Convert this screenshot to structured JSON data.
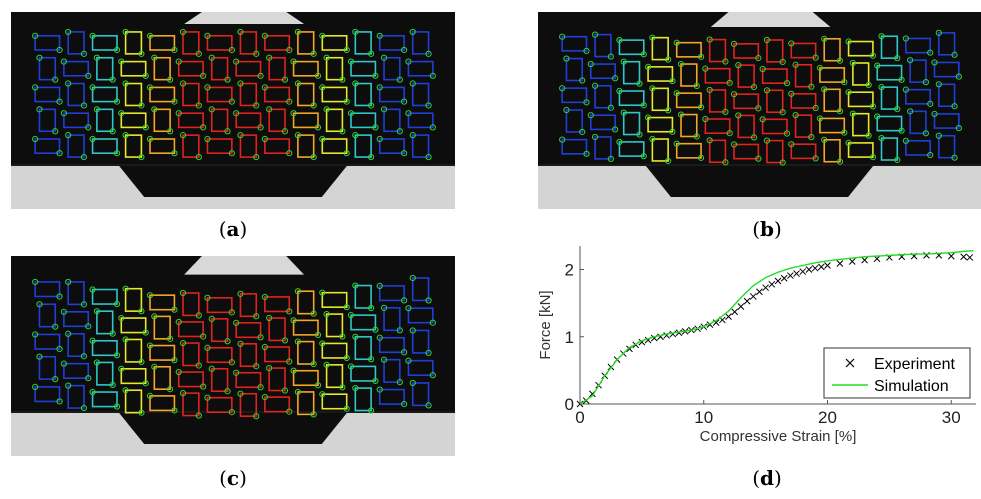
{
  "panels": [
    {
      "id": "a",
      "caption_letter": "a",
      "deformation": 0.0
    },
    {
      "id": "b",
      "caption_letter": "b",
      "deformation": 0.45
    },
    {
      "id": "c",
      "caption_letter": "c",
      "deformation": 1.0
    }
  ],
  "caption_d_letter": "d",
  "marker_colors": {
    "low": "#1f3fd6",
    "mid_low": "#2fc7c7",
    "mid": "#e8e82a",
    "mid_high": "#f5a623",
    "high": "#e0231d",
    "node": "#32d432"
  },
  "chart_data": {
    "type": "line",
    "title": "",
    "xlabel": "Compressive Strain [%]",
    "ylabel": "Force [kN]",
    "xlim": [
      0,
      32
    ],
    "ylim": [
      0,
      2.35
    ],
    "xticks": [
      "0",
      "10",
      "20",
      "30"
    ],
    "yticks": [
      "0",
      "1",
      "2"
    ],
    "legend_position": "bottom-right",
    "series": [
      {
        "name": "Experiment",
        "style": "marker-x",
        "color": "#000000",
        "x": [
          0,
          0.5,
          1,
          1.5,
          2,
          2.5,
          3,
          3.5,
          4,
          4.5,
          5,
          5.5,
          6,
          6.5,
          7,
          7.5,
          8,
          8.5,
          9,
          9.5,
          10,
          10.5,
          11,
          11.5,
          12,
          12.5,
          13,
          13.5,
          14,
          14.5,
          15,
          15.5,
          16,
          16.5,
          17,
          17.5,
          18,
          18.5,
          19,
          19.5,
          20,
          21,
          22,
          23,
          24,
          25,
          26,
          27,
          28,
          29,
          30,
          31,
          31.5
        ],
        "y": [
          0,
          0.05,
          0.15,
          0.28,
          0.42,
          0.55,
          0.66,
          0.75,
          0.82,
          0.88,
          0.92,
          0.95,
          0.98,
          1.0,
          1.02,
          1.04,
          1.06,
          1.08,
          1.1,
          1.12,
          1.15,
          1.18,
          1.21,
          1.25,
          1.3,
          1.37,
          1.45,
          1.53,
          1.6,
          1.67,
          1.73,
          1.78,
          1.83,
          1.87,
          1.91,
          1.94,
          1.97,
          2.0,
          2.02,
          2.04,
          2.06,
          2.09,
          2.12,
          2.14,
          2.16,
          2.18,
          2.19,
          2.2,
          2.21,
          2.21,
          2.2,
          2.19,
          2.18
        ]
      },
      {
        "name": "Simulation",
        "style": "line",
        "color": "#22dd22",
        "x": [
          0,
          1,
          2,
          3,
          4,
          5,
          6,
          7,
          8,
          9,
          10,
          11,
          12,
          13,
          14,
          15,
          16,
          17,
          18,
          19,
          20,
          21,
          22,
          23,
          24,
          25,
          26,
          27,
          28,
          29,
          30,
          31,
          31.8
        ],
        "y": [
          0,
          0.12,
          0.42,
          0.66,
          0.84,
          0.94,
          1.0,
          1.04,
          1.07,
          1.1,
          1.15,
          1.24,
          1.38,
          1.58,
          1.76,
          1.88,
          1.96,
          2.02,
          2.06,
          2.1,
          2.13,
          2.15,
          2.17,
          2.19,
          2.2,
          2.21,
          2.22,
          2.23,
          2.23,
          2.24,
          2.25,
          2.27,
          2.28
        ]
      }
    ]
  }
}
